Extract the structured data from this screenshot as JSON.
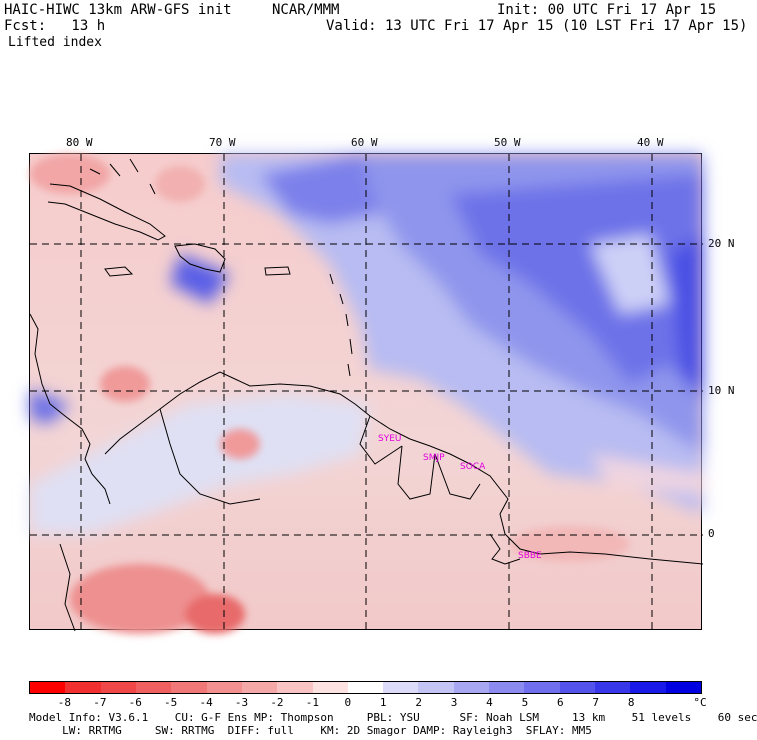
{
  "header": {
    "model_title": "HAIC-HIWC 13km ARW-GFS init",
    "org": "NCAR/MMM",
    "init": "Init: 00 UTC Fri 17 Apr 15",
    "fcst": "Fcst:   13 h",
    "valid": "Valid: 13 UTC Fri 17 Apr 15 (10 LST Fri 17 Apr 15)",
    "field": "Lifted index"
  },
  "axes": {
    "lon_labels": [
      "80 W",
      "70 W",
      "60 W",
      "50 W",
      "40 W"
    ],
    "lat_labels": [
      "20 N",
      "10 N",
      "0"
    ]
  },
  "stations": [
    "SYEU",
    "SMJP",
    "SOCA",
    "SBBE"
  ],
  "colorbar": {
    "unit": "°C",
    "labels": [
      "-8",
      "-7",
      "-6",
      "-5",
      "-4",
      "-3",
      "-2",
      "-1",
      "0",
      "1",
      "2",
      "3",
      "4",
      "5",
      "6",
      "7",
      "8"
    ],
    "colors": [
      "#ff0000",
      "#f23030",
      "#f04848",
      "#f06060",
      "#f07878",
      "#f39090",
      "#f5a8a8",
      "#f8c4c4",
      "#fde2e2",
      "#ffffff",
      "#dcdcfa",
      "#c4c4f5",
      "#a8a8f2",
      "#8c8cf0",
      "#7070ee",
      "#5454ec",
      "#3838ea",
      "#1a1ae8",
      "#0000e0"
    ]
  },
  "footer": {
    "line1": "Model Info: V3.6.1    CU: G-F Ens MP: Thompson     PBL: YSU      SF: Noah LSM     13 km    51 levels    60 sec",
    "line2": "     LW: RRTMG     SW: RRTMG  DIFF: full    KM: 2D Smagor DAMP: Rayleigh3  SFLAY: MM5"
  }
}
